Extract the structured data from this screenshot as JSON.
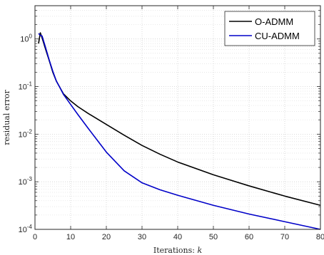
{
  "chart_data": {
    "type": "line",
    "title": "",
    "xlabel": "Iterations: k",
    "ylabel": "residual error",
    "xlim": [
      0,
      80
    ],
    "ylim": [
      0.0001,
      5
    ],
    "yscale": "log",
    "grid": true,
    "legend_position": "top-right",
    "x_ticks": [
      "0",
      "10",
      "20",
      "30",
      "40",
      "50",
      "60",
      "70",
      "80"
    ],
    "y_ticks": [
      {
        "value": 1,
        "base": "10",
        "exp": "0"
      },
      {
        "value": 0.1,
        "base": "10",
        "exp": "-1"
      },
      {
        "value": 0.01,
        "base": "10",
        "exp": "-2"
      },
      {
        "value": 0.001,
        "base": "10",
        "exp": "-3"
      },
      {
        "value": 0.0001,
        "base": "10",
        "exp": "-4"
      }
    ],
    "series": [
      {
        "name": "O-ADMM",
        "color": "#000000",
        "x": [
          1,
          1.5,
          2,
          3,
          4,
          5,
          6,
          7,
          8,
          10,
          12,
          15,
          20,
          25,
          30,
          35,
          40,
          50,
          60,
          70,
          80
        ],
        "y": [
          0.8,
          1.35,
          1.05,
          0.6,
          0.35,
          0.2,
          0.13,
          0.095,
          0.07,
          0.05,
          0.038,
          0.027,
          0.016,
          0.0095,
          0.0058,
          0.0038,
          0.0026,
          0.0014,
          0.00082,
          0.0005,
          0.00032
        ]
      },
      {
        "name": "CU-ADMM",
        "color": "#0000c8",
        "x": [
          1,
          1.5,
          2,
          3,
          4,
          5,
          6,
          7,
          8,
          10,
          12,
          15,
          20,
          25,
          30,
          35,
          40,
          50,
          60,
          70,
          80
        ],
        "y": [
          1.3,
          1.2,
          1.15,
          0.65,
          0.36,
          0.21,
          0.13,
          0.095,
          0.068,
          0.042,
          0.026,
          0.013,
          0.0042,
          0.0017,
          0.00095,
          0.00068,
          0.00052,
          0.00032,
          0.00021,
          0.000145,
          0.0001
        ]
      }
    ]
  }
}
